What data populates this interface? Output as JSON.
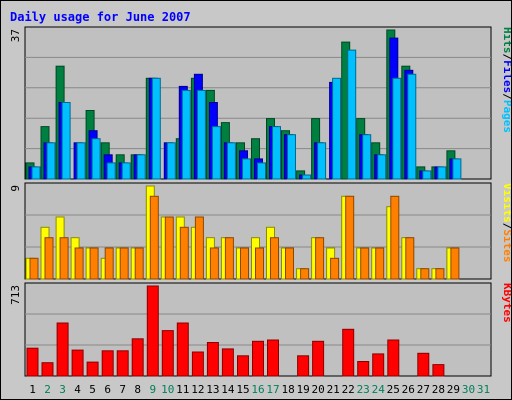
{
  "chart_data": {
    "type": "bar",
    "title": "Daily usage for June 2007",
    "x": [
      "1",
      "2",
      "3",
      "4",
      "5",
      "6",
      "7",
      "8",
      "9",
      "10",
      "11",
      "12",
      "13",
      "14",
      "15",
      "16",
      "17",
      "18",
      "19",
      "20",
      "21",
      "22",
      "23",
      "24",
      "25",
      "26",
      "27",
      "28",
      "29",
      "30",
      "31"
    ],
    "weekend_days": [
      "2",
      "3",
      "9",
      "10",
      "16",
      "17",
      "23",
      "24",
      "30",
      "31"
    ],
    "panels": [
      {
        "name": "hits",
        "ymax_label": "37",
        "ylim": [
          0,
          37
        ],
        "legend": [
          "Pages",
          "Files",
          "Hits"
        ],
        "legend_colors": [
          "#00c0ff",
          "#0000ff",
          "#008040"
        ],
        "series": [
          {
            "name": "Hits",
            "color": "#008040",
            "values": [
              4,
              13,
              28,
              0,
              17,
              9,
              6,
              6,
              25,
              0,
              10,
              25,
              22,
              14,
              9,
              10,
              15,
              12,
              2,
              15,
              0,
              34,
              15,
              9,
              37,
              28,
              3,
              3,
              7,
              0,
              0
            ]
          },
          {
            "name": "Files",
            "color": "#0000ff",
            "values": [
              3,
              9,
              19,
              9,
              12,
              6,
              4,
              6,
              25,
              9,
              23,
              26,
              19,
              9,
              7,
              5,
              13,
              11,
              1,
              9,
              24,
              0,
              11,
              6,
              35,
              27,
              2,
              3,
              5,
              0,
              0
            ]
          },
          {
            "name": "Pages",
            "color": "#00c0ff",
            "values": [
              3,
              9,
              19,
              9,
              10,
              4,
              4,
              6,
              25,
              9,
              22,
              22,
              13,
              9,
              5,
              4,
              13,
              11,
              1,
              9,
              25,
              32,
              11,
              6,
              25,
              26,
              2,
              3,
              5,
              0,
              0
            ]
          }
        ]
      },
      {
        "name": "visits",
        "ymax_label": "9",
        "ylim": [
          0,
          9
        ],
        "legend": [
          "Sites",
          "Visits"
        ],
        "legend_colors": [
          "#ff8000",
          "#ffff00"
        ],
        "series": [
          {
            "name": "Visits",
            "color": "#ffff00",
            "values": [
              2,
              5,
              6,
              4,
              3,
              2,
              3,
              3,
              9,
              6,
              6,
              5,
              4,
              4,
              3,
              4,
              5,
              3,
              1,
              4,
              3,
              8,
              3,
              3,
              7,
              4,
              1,
              1,
              3,
              0,
              0
            ]
          },
          {
            "name": "Sites",
            "color": "#ff8000",
            "values": [
              2,
              4,
              4,
              3,
              3,
              3,
              3,
              3,
              8,
              6,
              5,
              6,
              3,
              4,
              3,
              3,
              4,
              3,
              1,
              4,
              2,
              8,
              3,
              3,
              8,
              4,
              1,
              1,
              3,
              0,
              0
            ]
          }
        ]
      },
      {
        "name": "kbytes",
        "ymax_label": "713",
        "ylim": [
          0,
          713
        ],
        "legend": [
          "KBytes"
        ],
        "legend_colors": [
          "#ff0000"
        ],
        "series": [
          {
            "name": "KBytes",
            "color": "#ff0000",
            "values": [
              220,
              105,
              420,
              205,
              110,
              200,
              200,
              295,
              713,
              360,
              420,
              190,
              265,
              215,
              160,
              275,
              285,
              0,
              160,
              275,
              0,
              370,
              115,
              175,
              285,
              0,
              180,
              90,
              0,
              0,
              0
            ]
          }
        ]
      }
    ]
  }
}
